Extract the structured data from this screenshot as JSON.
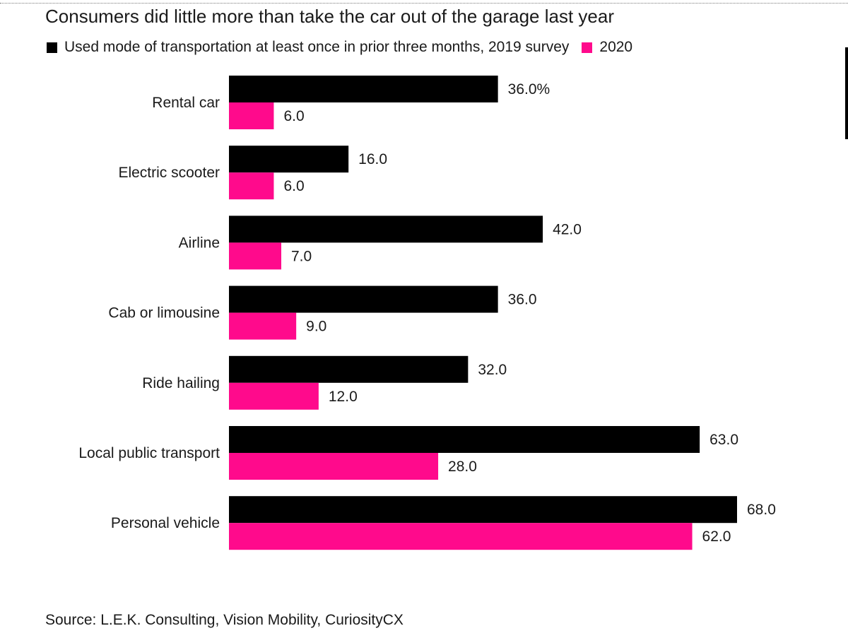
{
  "colors": {
    "series_2019": "#000000",
    "series_2020": "#ff0a8c"
  },
  "chart_data": {
    "type": "bar",
    "orientation": "horizontal",
    "title": "Consumers did little more than take the car out of the garage last year",
    "categories": [
      "Rental car",
      "Electric scooter",
      "Airline",
      "Cab or limousine",
      "Ride hailing",
      "Local public transport",
      "Personal vehicle"
    ],
    "series": [
      {
        "name": "Used mode of transportation at least once in prior three months, 2019 survey",
        "values": [
          36.0,
          16.0,
          42.0,
          36.0,
          32.0,
          63.0,
          68.0
        ],
        "labels": [
          "36.0%",
          "16.0",
          "42.0",
          "36.0",
          "32.0",
          "63.0",
          "68.0"
        ]
      },
      {
        "name": "2020",
        "values": [
          6.0,
          6.0,
          7.0,
          9.0,
          12.0,
          28.0,
          62.0
        ],
        "labels": [
          "6.0",
          "6.0",
          "7.0",
          "9.0",
          "12.0",
          "28.0",
          "62.0"
        ]
      }
    ],
    "xlim": [
      0,
      68
    ],
    "grid": false,
    "legend_position": "top-left",
    "source": "Source: L.E.K. Consulting, Vision Mobility, CuriosityCX"
  }
}
